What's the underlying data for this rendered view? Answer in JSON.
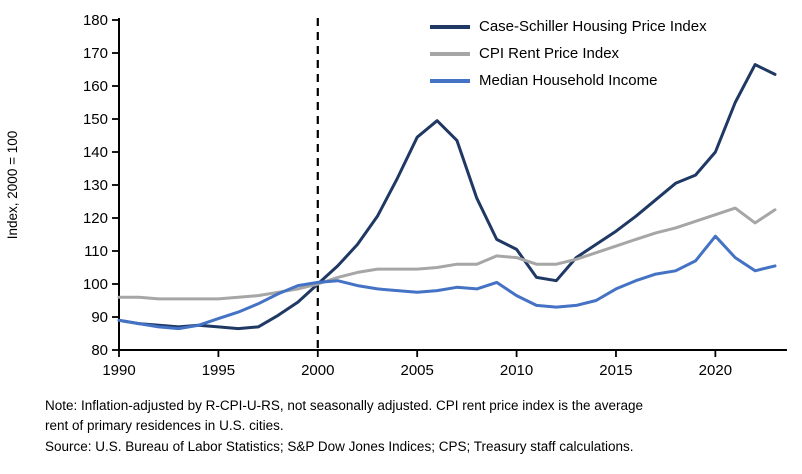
{
  "chart_data": {
    "type": "line",
    "title": "",
    "xlabel": "",
    "ylabel": "Index, 2000 = 100",
    "xlim": [
      1990,
      2023
    ],
    "ylim": [
      80,
      180
    ],
    "x_ticks": [
      1990,
      1995,
      2000,
      2005,
      2010,
      2015,
      2020
    ],
    "y_ticks": [
      80,
      90,
      100,
      110,
      120,
      130,
      140,
      150,
      160,
      170,
      180
    ],
    "grid": false,
    "legend_position": "top-right-inside",
    "reference_line_x": 2000,
    "x": [
      1990,
      1991,
      1992,
      1993,
      1994,
      1995,
      1996,
      1997,
      1998,
      1999,
      2000,
      2001,
      2002,
      2003,
      2004,
      2005,
      2006,
      2007,
      2008,
      2009,
      2010,
      2011,
      2012,
      2013,
      2014,
      2015,
      2016,
      2017,
      2018,
      2019,
      2020,
      2021,
      2022,
      2023
    ],
    "series": [
      {
        "name": "Case-Schiller Housing Price Index",
        "color": "#1f3864",
        "values": [
          89,
          88,
          87.5,
          87,
          87.5,
          87,
          86.5,
          87,
          90.5,
          94.5,
          100,
          105.5,
          112,
          120.5,
          132,
          144.5,
          149.5,
          143.5,
          126,
          113.5,
          110.5,
          102,
          101,
          108,
          112,
          116,
          120.5,
          125.5,
          130.5,
          133,
          140,
          155,
          166.5,
          163.5
        ]
      },
      {
        "name": "CPI Rent Price Index",
        "color": "#a6a6a6",
        "values": [
          96,
          96,
          95.5,
          95.5,
          95.5,
          95.5,
          96,
          96.5,
          97.5,
          98.5,
          100,
          102,
          103.5,
          104.5,
          104.5,
          104.5,
          105,
          106,
          106,
          108.5,
          108,
          106,
          106,
          107.5,
          109.5,
          111.5,
          113.5,
          115.5,
          117,
          119,
          121,
          123,
          118.5,
          122.5
        ]
      },
      {
        "name": "Median Household Income",
        "color": "#4472c4",
        "values": [
          89,
          88,
          87,
          86.5,
          87.5,
          89.5,
          91.5,
          94,
          97,
          99.5,
          100.5,
          101,
          99.5,
          98.5,
          98,
          97.5,
          98,
          99,
          98.5,
          100.5,
          96.5,
          93.5,
          93,
          93.5,
          95,
          98.5,
          101,
          103,
          104,
          107,
          114.5,
          108,
          104,
          105.5
        ]
      }
    ]
  },
  "notes": {
    "note_line1": "Note: Inflation-adjusted by R-CPI-U-RS, not seasonally adjusted. CPI rent price index is the average",
    "note_line2": "rent of primary residences in U.S. cities.",
    "source_line": "Source: U.S. Bureau of Labor Statistics; S&P Dow Jones Indices; CPS; Treasury staff calculations."
  }
}
